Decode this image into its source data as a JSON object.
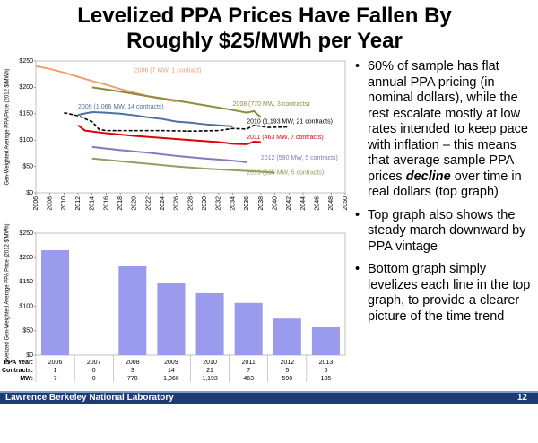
{
  "title": [
    "Levelized PPA Prices Have Fallen By",
    "Roughly $25/MWh per Year"
  ],
  "bullets": [
    [
      "60% of sample has flat annual PPA pricing (in nominal dollars), while the rest escalate mostly at low rates intended to keep pace with inflation – this means that average sample PPA prices ",
      "decline",
      " over time in real dollars (top graph)"
    ],
    [
      "Top graph also shows the steady march downward by PPA vintage"
    ],
    [
      "Bottom graph simply levelizes each line in the top graph, to provide a clearer picture of the time trend"
    ]
  ],
  "footer": {
    "organization": "Lawrence Berkeley National Laboratory",
    "page": "12"
  },
  "chart_data": [
    {
      "type": "line",
      "ylabel": "Gen-Weighted Average PPA Price (2012 $/MWh)",
      "xlim": [
        2006,
        2050
      ],
      "xticks": [
        2006,
        2008,
        2010,
        2012,
        2014,
        2016,
        2018,
        2020,
        2022,
        2024,
        2026,
        2028,
        2030,
        2032,
        2034,
        2036,
        2038,
        2040,
        2042,
        2044,
        2046,
        2048,
        2050
      ],
      "ylim": [
        0,
        250
      ],
      "yticks": [
        {
          "value": 0,
          "label": "$0"
        },
        {
          "value": 50,
          "label": "$50"
        },
        {
          "value": 100,
          "label": "$100"
        },
        {
          "value": 150,
          "label": "$150"
        },
        {
          "value": 200,
          "label": "$200"
        },
        {
          "value": 250,
          "label": "$250"
        }
      ],
      "grid": false,
      "series": [
        {
          "name": "2006 (7 MW, 1 contract)",
          "color": "#f0a070",
          "dash": false,
          "x": [
            2006,
            2008,
            2010,
            2012,
            2014,
            2016,
            2018,
            2020,
            2022,
            2024,
            2026
          ],
          "values": [
            240,
            235,
            228,
            220,
            212,
            205,
            197,
            190,
            183,
            178,
            173
          ]
        },
        {
          "name": "2008 (770 MW, 3 contracts)",
          "color": "#8c8c3c",
          "dash": false,
          "x": [
            2014,
            2018,
            2022,
            2026,
            2030,
            2034,
            2036,
            2037,
            2038
          ],
          "values": [
            200,
            192,
            183,
            175,
            166,
            157,
            152,
            155,
            143
          ]
        },
        {
          "name": "2009 (1,066 MW, 14 contracts)",
          "color": "#4f6fa0",
          "dash": false,
          "x": [
            2012,
            2014,
            2016,
            2018,
            2020,
            2022,
            2024,
            2026,
            2028,
            2030,
            2032,
            2034
          ],
          "values": [
            148,
            153,
            152,
            150,
            147,
            143,
            140,
            135,
            133,
            130,
            128,
            126
          ]
        },
        {
          "name": "2010 (1,193 MW, 21 contracts)",
          "color": "#000000",
          "dash": true,
          "x": [
            2010,
            2012,
            2014,
            2015,
            2016,
            2020,
            2024,
            2028,
            2032,
            2034,
            2036,
            2037,
            2039,
            2042
          ],
          "values": [
            152,
            146,
            135,
            120,
            118,
            118,
            118,
            117,
            118,
            122,
            121,
            128,
            124,
            125
          ]
        },
        {
          "name": "2011 (463 MW, 7 contracts)",
          "color": "#e00000",
          "dash": false,
          "x": [
            2012,
            2013,
            2016,
            2020,
            2024,
            2028,
            2032,
            2034,
            2036,
            2037,
            2038
          ],
          "values": [
            128,
            118,
            113,
            108,
            104,
            100,
            96,
            93,
            92,
            97,
            96
          ]
        },
        {
          "name": "2012 (590 MW, 5 contracts)",
          "color": "#8878b8",
          "dash": false,
          "x": [
            2014,
            2018,
            2022,
            2026,
            2030,
            2034,
            2036
          ],
          "values": [
            87,
            81,
            76,
            70,
            65,
            61,
            58
          ]
        },
        {
          "name": "2013 (135 MW, 5 contracts)",
          "color": "#9a9a62",
          "dash": false,
          "x": [
            2014,
            2018,
            2022,
            2026,
            2030,
            2034,
            2038,
            2040
          ],
          "values": [
            65,
            60,
            55,
            50,
            46,
            43,
            40,
            38
          ]
        }
      ]
    },
    {
      "type": "bar",
      "ylabel": "Levelized Gen-Weighted Average PPA Price (2012 $/MWh)",
      "categories": [
        "2006",
        "2007",
        "2008",
        "2009",
        "2010",
        "2011",
        "2012",
        "2013"
      ],
      "values": [
        215,
        null,
        182,
        147,
        127,
        107,
        75,
        57
      ],
      "color": "#9b9bee",
      "ylim": [
        0,
        250
      ],
      "yticks": [
        {
          "value": 0,
          "label": "$0"
        },
        {
          "value": 50,
          "label": "$50"
        },
        {
          "value": 100,
          "label": "$100"
        },
        {
          "value": 150,
          "label": "$150"
        },
        {
          "value": 200,
          "label": "$200"
        },
        {
          "value": 250,
          "label": "$250"
        }
      ],
      "table": {
        "row_labels": [
          "PPA Year:",
          "Contracts:",
          "MW:"
        ],
        "contracts": [
          "1",
          "0",
          "3",
          "14",
          "21",
          "7",
          "5",
          "5"
        ],
        "mw": [
          "7",
          "0",
          "770",
          "1,066",
          "1,193",
          "463",
          "590",
          "135"
        ]
      }
    }
  ]
}
